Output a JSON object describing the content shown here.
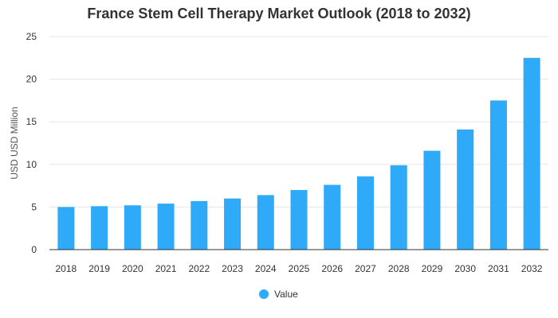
{
  "chart_data": {
    "type": "bar",
    "title": "France Stem Cell Therapy Market Outlook (2018 to 2032)",
    "xlabel": "",
    "ylabel": "USD USD Million",
    "categories": [
      "2018",
      "2019",
      "2020",
      "2021",
      "2022",
      "2023",
      "2024",
      "2025",
      "2026",
      "2027",
      "2028",
      "2029",
      "2030",
      "2031",
      "2032"
    ],
    "series": [
      {
        "name": "Value",
        "values": [
          5.0,
          5.1,
          5.2,
          5.4,
          5.7,
          6.0,
          6.4,
          7.0,
          7.6,
          8.6,
          9.9,
          11.6,
          14.1,
          17.5,
          22.5
        ]
      }
    ],
    "ylim": [
      0,
      25
    ],
    "yticks": [
      "0",
      "5",
      "10",
      "15",
      "20",
      "25"
    ],
    "grid": true,
    "legend": "bottom-center",
    "bar_color": "#2eaaf8",
    "grid_color": "#e6e6e6",
    "axis_color": "#333333",
    "text_color": "#333333"
  }
}
